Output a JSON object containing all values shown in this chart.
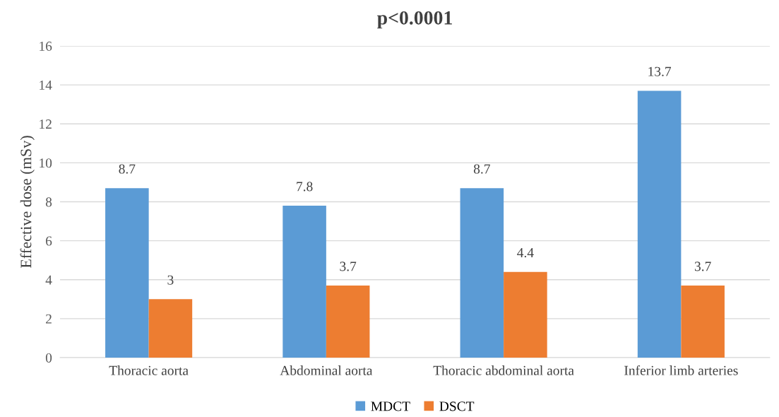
{
  "chart_data": {
    "type": "bar",
    "title": "p<0.0001",
    "ylabel": "Effective dose (mSv)",
    "categories": [
      "Thoracic aorta",
      "Abdominal aorta",
      "Thoracic abdominal aorta",
      "Inferior limb arteries"
    ],
    "series": [
      {
        "name": "MDCT",
        "color": "#5b9bd5",
        "values": [
          8.7,
          7.8,
          8.7,
          13.7
        ]
      },
      {
        "name": "DSCT",
        "color": "#ed7d31",
        "values": [
          3,
          3.7,
          4.4,
          3.7
        ]
      }
    ],
    "ylim": [
      0,
      16
    ],
    "yticks": [
      0,
      2,
      4,
      6,
      8,
      10,
      12,
      14,
      16
    ],
    "grid": "y",
    "legend": "bottom",
    "data_labels": true
  }
}
